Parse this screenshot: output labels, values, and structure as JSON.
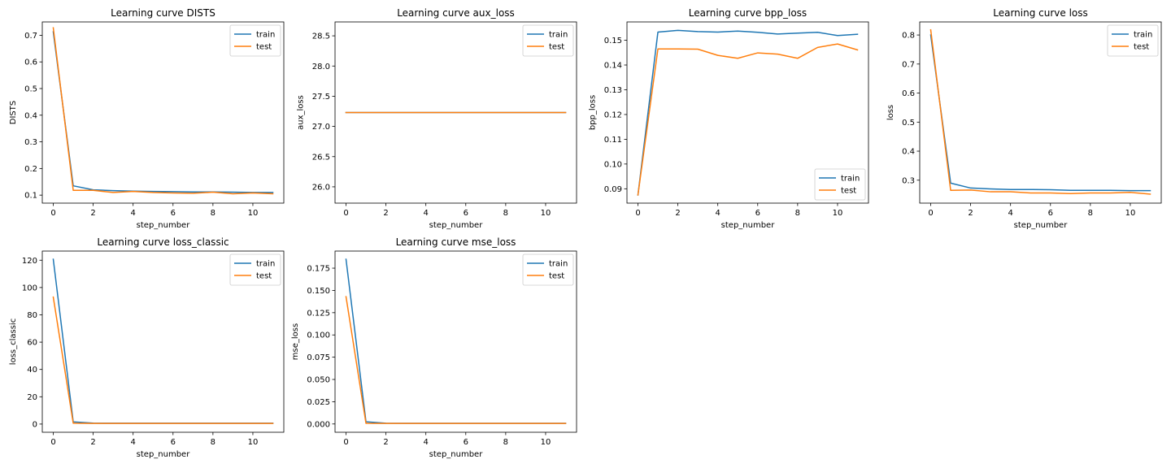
{
  "colors": {
    "train": "#1f77b4",
    "test": "#ff7f0e"
  },
  "chart_data": [
    {
      "type": "line",
      "title": "Learning curve DISTS",
      "xlabel": "step_number",
      "ylabel": "DISTS",
      "xlim": [
        -0.55,
        11.55
      ],
      "ylim": [
        0.07,
        0.75
      ],
      "xticks": [
        0,
        2,
        4,
        6,
        8,
        10
      ],
      "xtick_labels": [
        "0",
        "2",
        "4",
        "6",
        "8",
        "10"
      ],
      "yticks": [
        0.1,
        0.2,
        0.3,
        0.4,
        0.5,
        0.6,
        0.7
      ],
      "ytick_labels": [
        "0.1",
        "0.2",
        "0.3",
        "0.4",
        "0.5",
        "0.6",
        "0.7"
      ],
      "legend_loc": "upper right",
      "x": [
        0,
        1,
        2,
        3,
        4,
        5,
        6,
        7,
        8,
        9,
        10,
        11
      ],
      "series": [
        {
          "name": "train",
          "values": [
            0.713,
            0.135,
            0.12,
            0.117,
            0.115,
            0.114,
            0.113,
            0.112,
            0.112,
            0.111,
            0.11,
            0.11
          ]
        },
        {
          "name": "test",
          "values": [
            0.728,
            0.118,
            0.118,
            0.11,
            0.114,
            0.11,
            0.108,
            0.107,
            0.111,
            0.105,
            0.108,
            0.105
          ]
        }
      ]
    },
    {
      "type": "line",
      "title": "Learning curve aux_loss",
      "xlabel": "step_number",
      "ylabel": "aux_loss",
      "xlim": [
        -0.55,
        11.55
      ],
      "ylim": [
        25.73,
        28.73
      ],
      "xticks": [
        0,
        2,
        4,
        6,
        8,
        10
      ],
      "xtick_labels": [
        "0",
        "2",
        "4",
        "6",
        "8",
        "10"
      ],
      "yticks": [
        26.0,
        26.5,
        27.0,
        27.5,
        28.0,
        28.5
      ],
      "ytick_labels": [
        "26.0",
        "26.5",
        "27.0",
        "27.5",
        "28.0",
        "28.5"
      ],
      "legend_loc": "upper right",
      "x": [
        0,
        1,
        2,
        3,
        4,
        5,
        6,
        7,
        8,
        9,
        10,
        11
      ],
      "series": [
        {
          "name": "train",
          "values": [
            27.23,
            27.23,
            27.23,
            27.23,
            27.23,
            27.23,
            27.23,
            27.23,
            27.23,
            27.23,
            27.23,
            27.23
          ]
        },
        {
          "name": "test",
          "values": [
            27.23,
            27.23,
            27.23,
            27.23,
            27.23,
            27.23,
            27.23,
            27.23,
            27.23,
            27.23,
            27.23,
            27.23
          ]
        }
      ]
    },
    {
      "type": "line",
      "title": "Learning curve bpp_loss",
      "xlabel": "step_number",
      "ylabel": "bpp_loss",
      "xlim": [
        -0.55,
        11.55
      ],
      "ylim": [
        0.0842,
        0.1574
      ],
      "xticks": [
        0,
        2,
        4,
        6,
        8,
        10
      ],
      "xtick_labels": [
        "0",
        "2",
        "4",
        "6",
        "8",
        "10"
      ],
      "yticks": [
        0.09,
        0.1,
        0.11,
        0.12,
        0.13,
        0.14,
        0.15
      ],
      "ytick_labels": [
        "0.09",
        "0.10",
        "0.11",
        "0.12",
        "0.13",
        "0.14",
        "0.15"
      ],
      "legend_loc": "lower right",
      "x": [
        0,
        1,
        2,
        3,
        4,
        5,
        6,
        7,
        8,
        9,
        10,
        11
      ],
      "series": [
        {
          "name": "train",
          "values": [
            0.0875,
            0.1533,
            0.154,
            0.1535,
            0.1533,
            0.1537,
            0.1532,
            0.1525,
            0.1529,
            0.1532,
            0.1519,
            0.1524
          ]
        },
        {
          "name": "test",
          "values": [
            0.0875,
            0.1465,
            0.1465,
            0.1464,
            0.1439,
            0.1427,
            0.1449,
            0.1444,
            0.1427,
            0.1471,
            0.1485,
            0.1461
          ]
        }
      ]
    },
    {
      "type": "line",
      "title": "Learning curve loss",
      "xlabel": "step_number",
      "ylabel": "loss",
      "xlim": [
        -0.55,
        11.55
      ],
      "ylim": [
        0.221,
        0.845
      ],
      "xticks": [
        0,
        2,
        4,
        6,
        8,
        10
      ],
      "xtick_labels": [
        "0",
        "2",
        "4",
        "6",
        "8",
        "10"
      ],
      "yticks": [
        0.3,
        0.4,
        0.5,
        0.6,
        0.7,
        0.8
      ],
      "ytick_labels": [
        "0.3",
        "0.4",
        "0.5",
        "0.6",
        "0.7",
        "0.8"
      ],
      "legend_loc": "upper right",
      "x": [
        0,
        1,
        2,
        3,
        4,
        5,
        6,
        7,
        8,
        9,
        10,
        11
      ],
      "series": [
        {
          "name": "train",
          "values": [
            0.8,
            0.29,
            0.273,
            0.27,
            0.268,
            0.268,
            0.267,
            0.265,
            0.265,
            0.265,
            0.264,
            0.264
          ]
        },
        {
          "name": "test",
          "values": [
            0.818,
            0.265,
            0.266,
            0.26,
            0.26,
            0.256,
            0.256,
            0.254,
            0.256,
            0.256,
            0.258,
            0.252
          ]
        }
      ]
    },
    {
      "type": "line",
      "title": "Learning curve loss_classic",
      "xlabel": "step_number",
      "ylabel": "loss_classic",
      "xlim": [
        -0.55,
        11.55
      ],
      "ylim": [
        -6.0,
        126.7
      ],
      "xticks": [
        0,
        2,
        4,
        6,
        8,
        10
      ],
      "xtick_labels": [
        "0",
        "2",
        "4",
        "6",
        "8",
        "10"
      ],
      "yticks": [
        0,
        20,
        40,
        60,
        80,
        100,
        120
      ],
      "ytick_labels": [
        "0",
        "20",
        "40",
        "60",
        "80",
        "100",
        "120"
      ],
      "legend_loc": "upper right",
      "x": [
        0,
        1,
        2,
        3,
        4,
        5,
        6,
        7,
        8,
        9,
        10,
        11
      ],
      "series": [
        {
          "name": "train",
          "values": [
            120.7,
            1.6,
            0.7,
            0.6,
            0.6,
            0.6,
            0.6,
            0.6,
            0.6,
            0.6,
            0.6,
            0.6
          ]
        },
        {
          "name": "test",
          "values": [
            93.0,
            0.6,
            0.5,
            0.5,
            0.5,
            0.5,
            0.5,
            0.5,
            0.5,
            0.5,
            0.5,
            0.5
          ]
        }
      ]
    },
    {
      "type": "line",
      "title": "Learning curve mse_loss",
      "xlabel": "step_number",
      "ylabel": "mse_loss",
      "xlim": [
        -0.55,
        11.55
      ],
      "ylim": [
        -0.0093,
        0.1942
      ],
      "xticks": [
        0,
        2,
        4,
        6,
        8,
        10
      ],
      "xtick_labels": [
        "0",
        "2",
        "4",
        "6",
        "8",
        "10"
      ],
      "yticks": [
        0.0,
        0.025,
        0.05,
        0.075,
        0.1,
        0.125,
        0.15,
        0.175
      ],
      "ytick_labels": [
        "0.000",
        "0.025",
        "0.050",
        "0.075",
        "0.100",
        "0.125",
        "0.150",
        "0.175"
      ],
      "legend_loc": "upper right",
      "x": [
        0,
        1,
        2,
        3,
        4,
        5,
        6,
        7,
        8,
        9,
        10,
        11
      ],
      "series": [
        {
          "name": "train",
          "values": [
            0.185,
            0.0024,
            0.0008,
            0.0007,
            0.0007,
            0.0007,
            0.0007,
            0.0007,
            0.0007,
            0.0007,
            0.0007,
            0.0007
          ]
        },
        {
          "name": "test",
          "values": [
            0.143,
            0.0007,
            0.0006,
            0.0006,
            0.0006,
            0.0006,
            0.0006,
            0.0006,
            0.0006,
            0.0006,
            0.0006,
            0.0006
          ]
        }
      ]
    }
  ]
}
